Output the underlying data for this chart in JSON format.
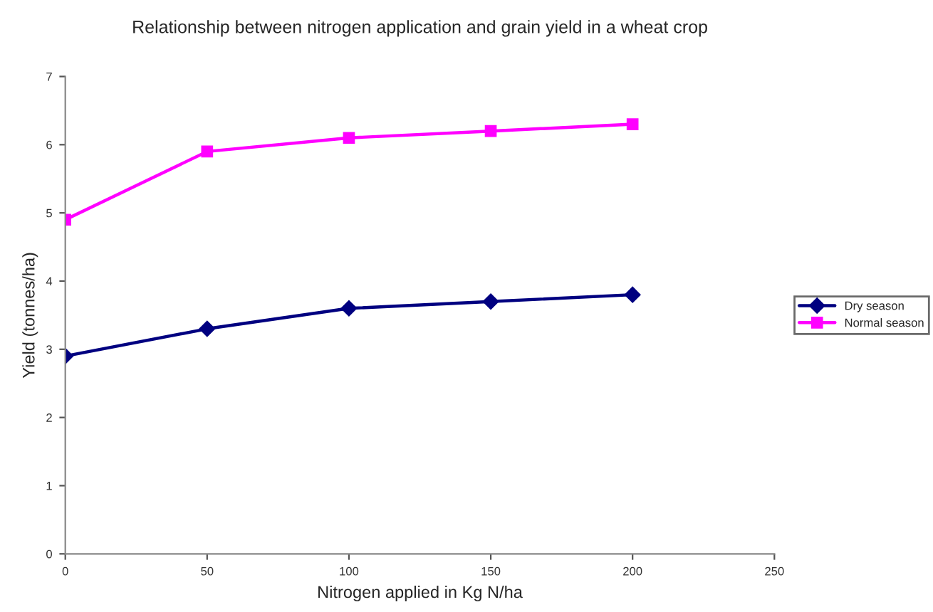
{
  "chart_data": {
    "type": "line",
    "title": "Relationship between nitrogen application and grain yield in a wheat crop",
    "xlabel": "Nitrogen applied in Kg N/ha",
    "ylabel": "Yield (tonnes/ha)",
    "x": [
      0,
      50,
      100,
      150,
      200
    ],
    "series": [
      {
        "name": "Dry season",
        "color": "#000080",
        "marker": "diamond",
        "values": [
          2.9,
          3.3,
          3.6,
          3.7,
          3.8
        ]
      },
      {
        "name": "Normal season",
        "color": "#ff00ff",
        "marker": "square",
        "values": [
          4.9,
          5.9,
          6.1,
          6.2,
          6.3
        ]
      }
    ],
    "xlim": [
      0,
      250
    ],
    "xticks": [
      0,
      50,
      100,
      150,
      200,
      250
    ],
    "ylim": [
      0,
      7
    ],
    "yticks": [
      0,
      1,
      2,
      3,
      4,
      5,
      6,
      7
    ],
    "grid": false,
    "legend": "right",
    "line_style": "solid"
  }
}
